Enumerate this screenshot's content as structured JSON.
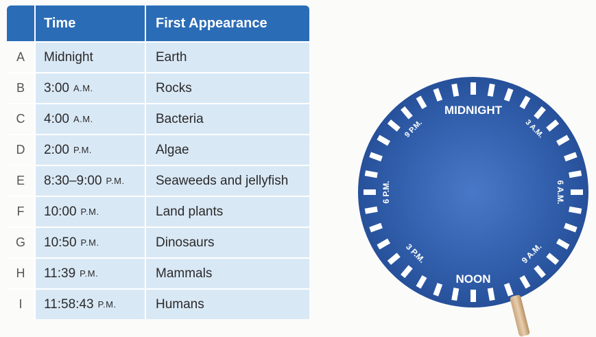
{
  "table": {
    "headers": {
      "time": "Time",
      "appearance": "First Appearance"
    },
    "rows": [
      {
        "letter": "A",
        "time": "Midnight",
        "suffix": "",
        "appearance": "Earth"
      },
      {
        "letter": "B",
        "time": "3:00",
        "suffix": "A.M.",
        "appearance": "Rocks"
      },
      {
        "letter": "C",
        "time": "4:00",
        "suffix": "A.M.",
        "appearance": "Bacteria"
      },
      {
        "letter": "D",
        "time": "2:00",
        "suffix": "P.M.",
        "appearance": "Algae"
      },
      {
        "letter": "E",
        "time": "8:30–9:00",
        "suffix": "P.M.",
        "appearance": "Seaweeds and jellyfish"
      },
      {
        "letter": "F",
        "time": "10:00",
        "suffix": "P.M.",
        "appearance": "Land plants"
      },
      {
        "letter": "G",
        "time": "10:50",
        "suffix": "P.M.",
        "appearance": "Dinosaurs"
      },
      {
        "letter": "H",
        "time": "11:39",
        "suffix": "P.M.",
        "appearance": "Mammals"
      },
      {
        "letter": "I",
        "time": "11:58:43",
        "suffix": "P.M.",
        "appearance": "Humans"
      }
    ]
  },
  "clock": {
    "midnight": "MIDNIGHT",
    "noon": "NOON",
    "h3am": "3 A.M.",
    "h6am": "6 A.M.",
    "h9am": "9 A.M.",
    "h3pm": "3 P.M.",
    "h6pm": "6 P.M.",
    "h9pm": "9 P.M."
  },
  "colors": {
    "header": "#2b6cb6",
    "cell": "#d9e8f5",
    "dial": "#2f5ca8"
  }
}
